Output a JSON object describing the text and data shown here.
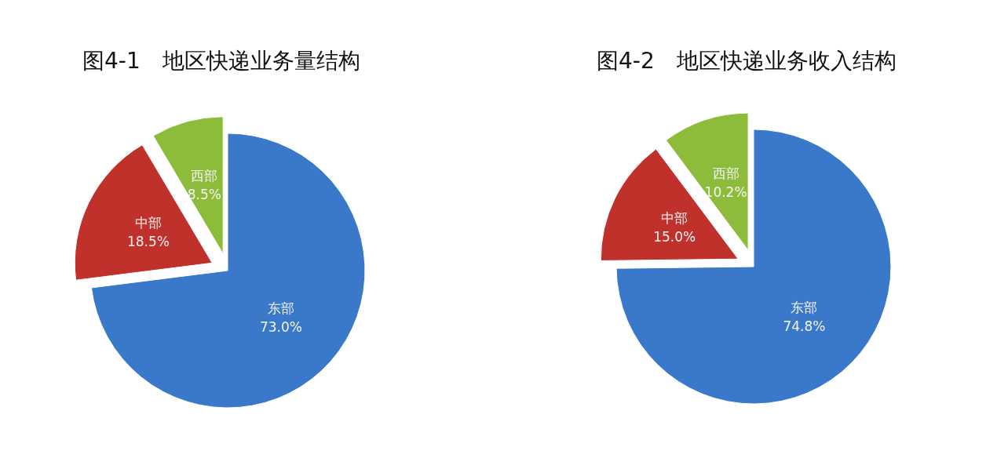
{
  "chart_data": [
    {
      "type": "pie",
      "title": "图4-1　地区快递业务量结构",
      "categories": [
        "东部",
        "中部",
        "西部"
      ],
      "values": [
        73.0,
        18.5,
        8.5
      ],
      "value_labels": [
        "73.0%",
        "18.5%",
        "8.5%"
      ],
      "colors": [
        "#3a78c9",
        "#c0312c",
        "#8dbb3a"
      ]
    },
    {
      "type": "pie",
      "title": "图4-2　地区快递业务收入结构",
      "categories": [
        "东部",
        "中部",
        "西部"
      ],
      "values": [
        74.8,
        15.0,
        10.2
      ],
      "value_labels": [
        "74.8%",
        "15.0%",
        "10.2%"
      ],
      "colors": [
        "#3a78c9",
        "#c0312c",
        "#8dbb3a"
      ]
    }
  ]
}
